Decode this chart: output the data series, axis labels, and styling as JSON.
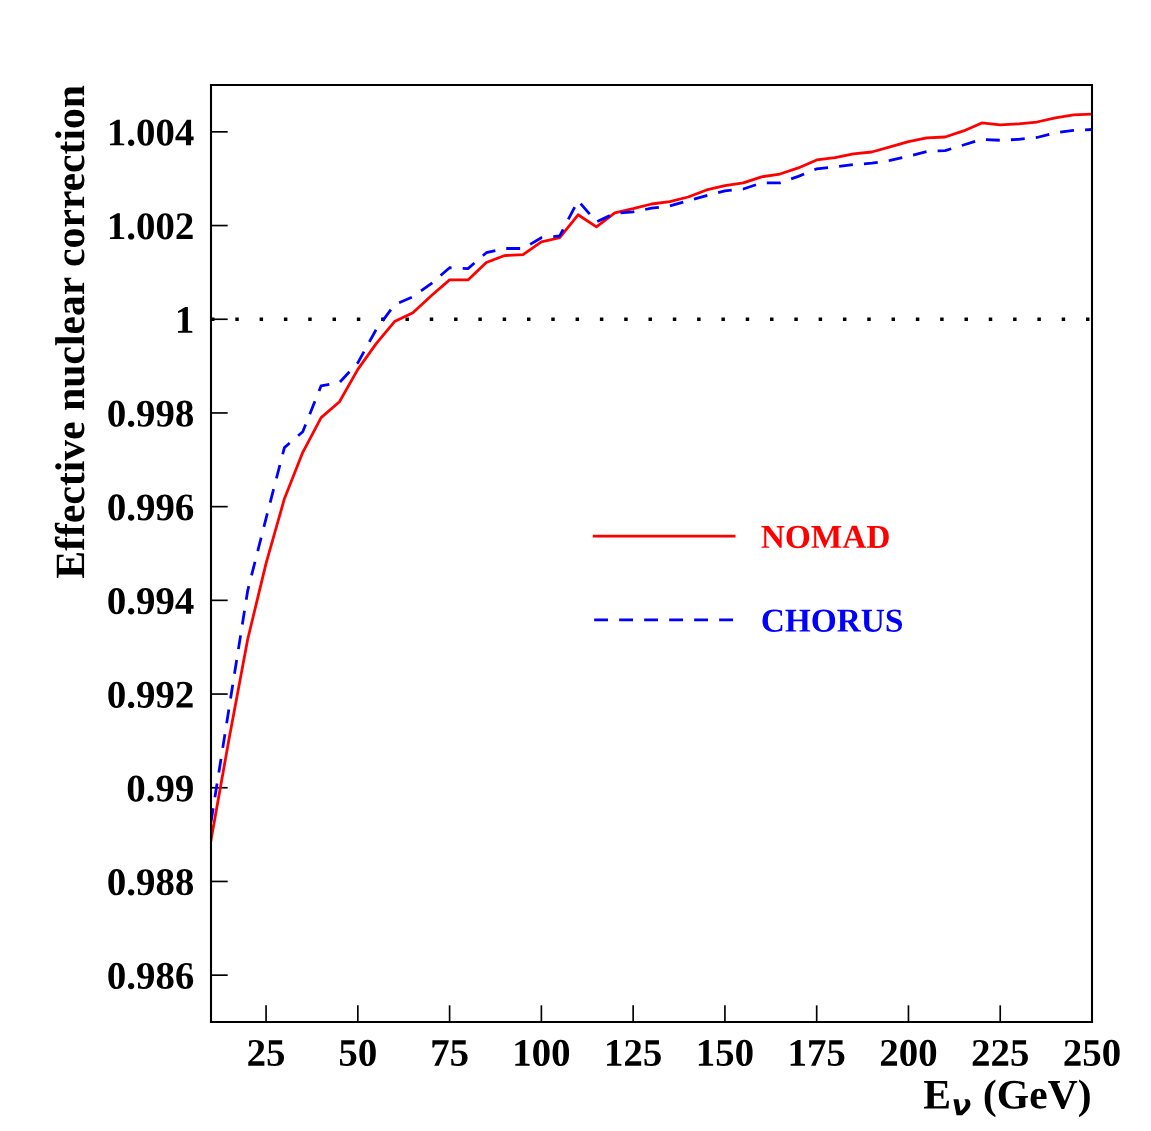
{
  "chart_data": {
    "type": "line",
    "xlabel": "E$_{ν}$ (GeV)",
    "ylabel": "Effective nuclear correction",
    "x": [
      10,
      15,
      20,
      25,
      30,
      35,
      40,
      45,
      50,
      55,
      60,
      65,
      70,
      75,
      80,
      85,
      90,
      95,
      100,
      105,
      110,
      115,
      120,
      125,
      130,
      135,
      140,
      145,
      150,
      155,
      160,
      165,
      170,
      175,
      180,
      185,
      190,
      195,
      200,
      205,
      210,
      215,
      220,
      225,
      230,
      235,
      240,
      245,
      250
    ],
    "series": [
      {
        "name": "NOMAD",
        "color": "#ff0000",
        "line_style": "solid",
        "values": [
          0.98888,
          0.99108,
          0.99317,
          0.99479,
          0.99617,
          0.99716,
          0.9979,
          0.99824,
          0.99893,
          0.99948,
          0.99995,
          1.00014,
          1.0005,
          1.00084,
          1.00084,
          1.00121,
          1.00136,
          1.00138,
          1.00165,
          1.00174,
          1.00223,
          1.00197,
          1.00227,
          1.00236,
          1.00246,
          1.00251,
          1.00261,
          1.00276,
          1.00285,
          1.00291,
          1.00304,
          1.0031,
          1.00323,
          1.0034,
          1.00345,
          1.00353,
          1.00357,
          1.00368,
          1.00379,
          1.00387,
          1.00389,
          1.00402,
          1.00419,
          1.00415,
          1.00417,
          1.00421,
          1.0043,
          1.00436,
          1.00438
        ]
      },
      {
        "name": "CHORUS",
        "color": "#0000ff",
        "line_style": "dashed",
        "values": [
          0.98927,
          0.99174,
          0.99421,
          0.99575,
          0.99726,
          0.9976,
          0.99858,
          0.99865,
          0.99907,
          0.99978,
          1.00031,
          1.00048,
          1.00076,
          1.0011,
          1.00108,
          1.00142,
          1.00151,
          1.00151,
          1.00174,
          1.00178,
          1.00253,
          1.00208,
          1.00226,
          1.00229,
          1.00237,
          1.00242,
          1.00253,
          1.00264,
          1.00274,
          1.00278,
          1.00291,
          1.00291,
          1.00305,
          1.00321,
          1.00325,
          1.0033,
          1.00333,
          1.00339,
          1.00348,
          1.00358,
          1.0036,
          1.00372,
          1.00384,
          1.00382,
          1.00384,
          1.00388,
          1.00398,
          1.00403,
          1.00405
        ]
      }
    ],
    "xlim": [
      10,
      250
    ],
    "xticks": [
      25,
      50,
      75,
      100,
      125,
      150,
      175,
      200,
      225,
      250
    ],
    "ylim": [
      0.985,
      1.005
    ],
    "yticks": [
      0.986,
      0.988,
      0.99,
      0.992,
      0.994,
      0.996,
      0.998,
      {
        "value": 1,
        "label": "1"
      },
      1.002,
      1.004
    ],
    "ref_lines": [
      {
        "axis": "y",
        "value": 1,
        "label": null,
        "color": "#000000",
        "line_style": "dotted"
      }
    ],
    "legend": "right",
    "grid": false,
    "marker": "none"
  }
}
